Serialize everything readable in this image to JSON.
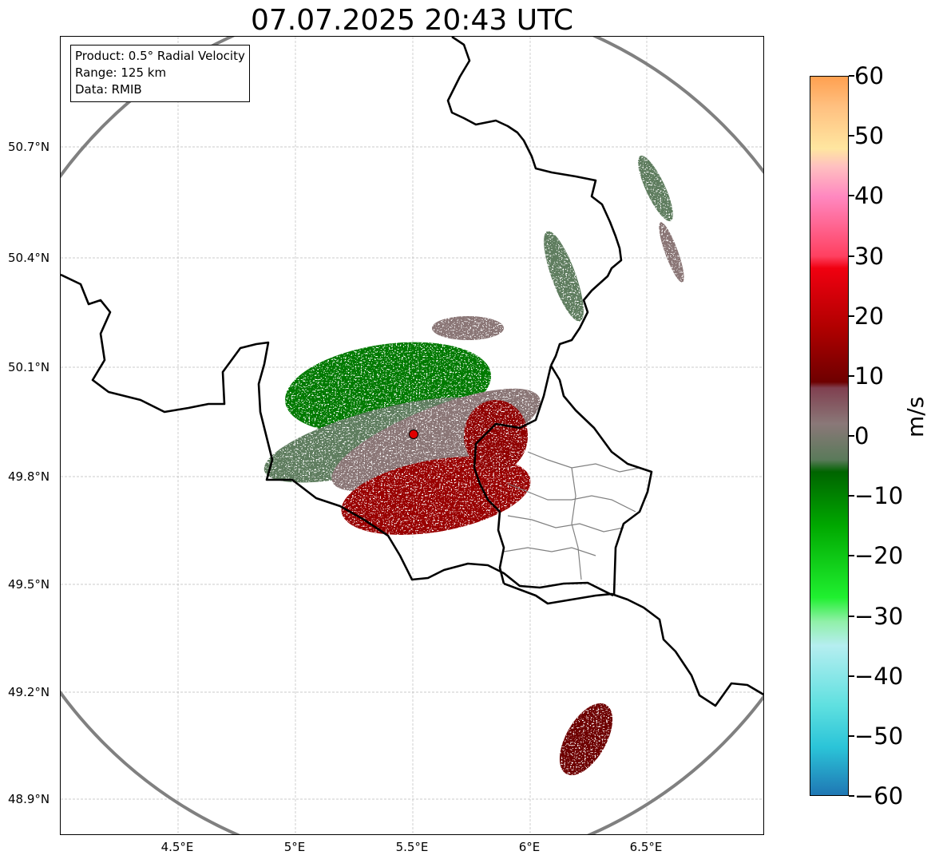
{
  "title": "07.07.2025 20:43 UTC",
  "info_box": {
    "product": "Product: 0.5° Radial Velocity",
    "range": "Range: 125 km",
    "data": "Data: RMIB"
  },
  "lat_labels": [
    "50.7°N",
    "50.4°N",
    "50.1°N",
    "49.8°N",
    "49.5°N",
    "49.2°N",
    "48.9°N"
  ],
  "lon_labels": [
    "4.5°E",
    "5°E",
    "5.5°E",
    "6°E",
    "6.5°E"
  ],
  "colorbar": {
    "unit": "m/s",
    "tick_labels": [
      "60",
      "50",
      "40",
      "30",
      "20",
      "10",
      "0",
      "−10",
      "−20",
      "−30",
      "−40",
      "−50",
      "−60"
    ],
    "min": -60,
    "max": 60,
    "stops": [
      {
        "v": -60,
        "c": "#1f77b4"
      },
      {
        "v": -52,
        "c": "#2bc4d8"
      },
      {
        "v": -45,
        "c": "#5fe0e0"
      },
      {
        "v": -35,
        "c": "#b5eef0"
      },
      {
        "v": -31,
        "c": "#90f0a8"
      },
      {
        "v": -27,
        "c": "#20f030"
      },
      {
        "v": -15,
        "c": "#00a800"
      },
      {
        "v": -6,
        "c": "#006400"
      },
      {
        "v": -4,
        "c": "#5a7a5a"
      },
      {
        "v": 2,
        "c": "#8a7878"
      },
      {
        "v": 8,
        "c": "#804050"
      },
      {
        "v": 9,
        "c": "#6e0000"
      },
      {
        "v": 18,
        "c": "#b00000"
      },
      {
        "v": 28,
        "c": "#f00010"
      },
      {
        "v": 30,
        "c": "#ff4060"
      },
      {
        "v": 40,
        "c": "#ff88c0"
      },
      {
        "v": 45,
        "c": "#ffc0c0"
      },
      {
        "v": 48,
        "c": "#ffe6a0"
      },
      {
        "v": 55,
        "c": "#ffc080"
      },
      {
        "v": 60,
        "c": "#ffa050"
      }
    ]
  },
  "map": {
    "radar_site_color": "#e00000",
    "range_ring_color": "#808080",
    "border_color": "#000000",
    "grid_color": "#bbbbbb"
  }
}
